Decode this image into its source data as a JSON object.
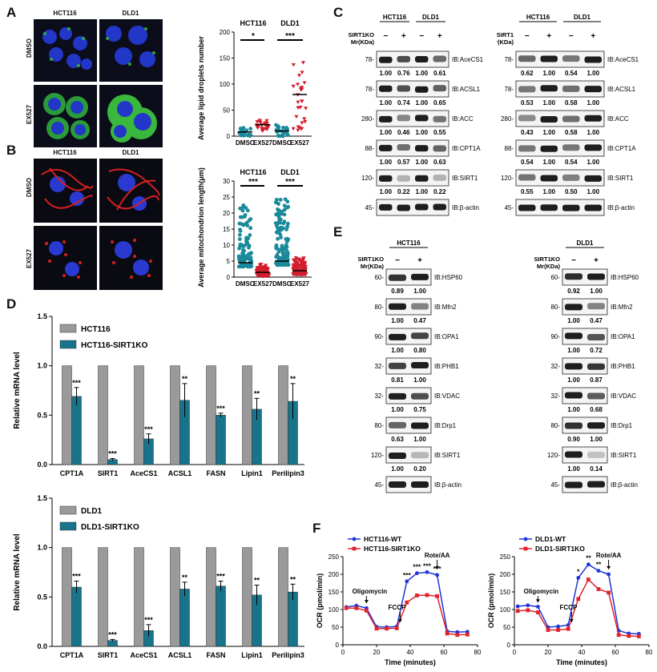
{
  "panels": {
    "A": "A",
    "B": "B",
    "C": "C",
    "D": "D",
    "E": "E",
    "F": "F"
  },
  "panel_a": {
    "col_labels": [
      "HCT116",
      "DLD1"
    ],
    "row_labels": [
      "DMSO",
      "EX527"
    ],
    "plot": {
      "ylabel": "Average lipid droplets number",
      "group_labels": [
        "HCT116",
        "DLD1"
      ],
      "sig": [
        "*",
        "***"
      ],
      "xticks": [
        "DMSO",
        "EX527",
        "DMSO",
        "EX527"
      ],
      "yticks": [
        "0",
        "50",
        "100",
        "150",
        "200"
      ]
    }
  },
  "panel_b": {
    "col_labels": [
      "HCT116",
      "DLD1"
    ],
    "row_labels": [
      "DMSO",
      "EX527"
    ],
    "plot": {
      "ylabel": "Average mitochondrion length(μm)",
      "group_labels": [
        "HCT116",
        "DLD1"
      ],
      "sig": [
        "***",
        "***"
      ],
      "xticks": [
        "DMSO",
        "EX527",
        "DMSO",
        "EX527"
      ],
      "yticks": [
        "0",
        "5",
        "10",
        "15",
        "20",
        "25",
        "30"
      ]
    }
  },
  "chart_data": [
    {
      "type": "scatter",
      "panel": "A",
      "categories": [
        "DMSO",
        "EX527",
        "DMSO",
        "EX527"
      ],
      "groups": [
        "HCT116",
        "DLD1"
      ],
      "ylim": [
        0,
        200
      ],
      "medians": [
        8,
        22,
        10,
        80
      ],
      "colors": [
        "#1a8a9a",
        "#d21e2d",
        "#1a8a9a",
        "#d21e2d"
      ]
    },
    {
      "type": "scatter",
      "panel": "B",
      "categories": [
        "DMSO",
        "EX527",
        "DMSO",
        "EX527"
      ],
      "groups": [
        "HCT116",
        "DLD1"
      ],
      "ylim": [
        0,
        30
      ],
      "medians": [
        4.5,
        1.5,
        5,
        2
      ],
      "colors": [
        "#1a8a9a",
        "#d21e2d",
        "#1a8a9a",
        "#d21e2d"
      ]
    },
    {
      "type": "bar",
      "panel": "D-top",
      "categories": [
        "CPT1A",
        "SIRT1",
        "AceCS1",
        "ACSL1",
        "FASN",
        "Lipin1",
        "Perilipin3"
      ],
      "ylabel": "Relative mRNA level",
      "ylim": [
        0,
        1.5
      ],
      "yticks": [
        "0.0",
        "0.5",
        "1.0",
        "1.5"
      ],
      "series": [
        {
          "name": "HCT116",
          "values": [
            1,
            1,
            1,
            1,
            1,
            1,
            1
          ],
          "color": "#9a9a9a"
        },
        {
          "name": "HCT116-SIRT1KO",
          "values": [
            0.69,
            0.05,
            0.26,
            0.65,
            0.5,
            0.56,
            0.64
          ],
          "errors": [
            0.09,
            0.01,
            0.05,
            0.17,
            0.02,
            0.11,
            0.18
          ],
          "color": "#17748a"
        }
      ],
      "sig": [
        "***",
        "***",
        "***",
        "**",
        "***",
        "**",
        "**"
      ]
    },
    {
      "type": "bar",
      "panel": "D-bottom",
      "categories": [
        "CPT1A",
        "SIRT1",
        "AceCS1",
        "ACSL1",
        "FASN",
        "Lipin1",
        "Perilipin3"
      ],
      "ylabel": "Relative mRNA level",
      "ylim": [
        0,
        1.5
      ],
      "yticks": [
        "0.0",
        "0.5",
        "1.0",
        "1.5"
      ],
      "series": [
        {
          "name": "DLD1",
          "values": [
            1,
            1,
            1,
            1,
            1,
            1,
            1
          ],
          "color": "#9a9a9a"
        },
        {
          "name": "DLD1-SIRT1KO",
          "values": [
            0.6,
            0.06,
            0.16,
            0.58,
            0.61,
            0.52,
            0.55
          ],
          "errors": [
            0.06,
            0.01,
            0.06,
            0.07,
            0.05,
            0.1,
            0.08
          ],
          "color": "#17748a"
        }
      ],
      "sig": [
        "***",
        "***",
        "***",
        "**",
        "***",
        "**",
        "**"
      ]
    },
    {
      "type": "line",
      "panel": "F-left",
      "xlabel": "Time (minutes)",
      "ylabel": "OCR (pmol/min)",
      "xlim": [
        0,
        80
      ],
      "ylim": [
        0,
        250
      ],
      "xticks": [
        "0",
        "20",
        "40",
        "60",
        "80"
      ],
      "yticks": [
        "0",
        "50",
        "100",
        "150",
        "200",
        "250"
      ],
      "x": [
        2,
        8,
        14,
        20,
        26,
        32,
        38,
        44,
        50,
        56,
        62,
        68,
        74
      ],
      "series": [
        {
          "name": "HCT116-WT",
          "values": [
            107,
            111,
            104,
            51,
            50,
            52,
            180,
            203,
            206,
            198,
            38,
            36,
            37
          ],
          "color": "#1f35d6"
        },
        {
          "name": "HCT116-SIRT1KO",
          "values": [
            104,
            104,
            97,
            46,
            46,
            47,
            120,
            140,
            141,
            138,
            32,
            28,
            29
          ],
          "color": "#e0242c"
        }
      ],
      "annotations": [
        "Oligomycin",
        "FCCP",
        "Rote/AA"
      ],
      "sig": [
        "***",
        "***",
        "***",
        "***"
      ]
    },
    {
      "type": "line",
      "panel": "F-right",
      "xlabel": "Time (minutes)",
      "ylabel": "OCR (pmol/min)",
      "xlim": [
        0,
        80
      ],
      "ylim": [
        0,
        250
      ],
      "xticks": [
        "0",
        "20",
        "40",
        "60",
        "80"
      ],
      "yticks": [
        "0",
        "50",
        "100",
        "150",
        "200",
        "250"
      ],
      "x": [
        2,
        8,
        14,
        20,
        26,
        32,
        38,
        44,
        50,
        56,
        62,
        68,
        74
      ],
      "series": [
        {
          "name": "DLD1-WT",
          "values": [
            109,
            112,
            108,
            50,
            52,
            56,
            190,
            228,
            210,
            200,
            40,
            32,
            31
          ],
          "color": "#1f35d6"
        },
        {
          "name": "DLD1-SIRT1KO",
          "values": [
            96,
            98,
            92,
            42,
            42,
            45,
            130,
            185,
            158,
            148,
            28,
            25,
            24
          ],
          "color": "#e0242c"
        }
      ],
      "annotations": [
        "Oligomycin",
        "FCCP",
        "Rote/AA"
      ],
      "sig": [
        "*",
        "**",
        "**"
      ]
    }
  ],
  "panel_c": {
    "left": {
      "cells": [
        "HCT116",
        "DLD1"
      ],
      "condition": "SIRT1KO",
      "mr": "Mr(KDa)",
      "signs": [
        "−",
        "+",
        "−",
        "+"
      ],
      "rows": [
        {
          "mw": "78-",
          "label": "IB:AceCS1",
          "q": [
            "1.00",
            "0.76",
            "1.00",
            "0.61"
          ]
        },
        {
          "mw": "78-",
          "label": "IB:ACSL1",
          "q": [
            "1.00",
            "0.74",
            "1.00",
            "0.65"
          ]
        },
        {
          "mw": "280-",
          "label": "IB:ACC",
          "q": [
            "1.00",
            "0.46",
            "1.00",
            "0.55"
          ]
        },
        {
          "mw": "88-",
          "label": "IB:CPT1A",
          "q": [
            "1.00",
            "0.57",
            "1.00",
            "0.63"
          ]
        },
        {
          "mw": "120-",
          "label": "IB:SIRT1",
          "q": [
            "1.00",
            "0.22",
            "1.00",
            "0.22"
          ]
        },
        {
          "mw": "45-",
          "label": "IB:β-actin",
          "q": []
        }
      ]
    },
    "right": {
      "cells": [
        "HCT116",
        "DLD1"
      ],
      "condition": "OVSIRT1",
      "mr": "Mr(KDa)",
      "signs": [
        "−",
        "+",
        "−",
        "+"
      ],
      "rows": [
        {
          "mw": "78-",
          "label": "IB:AceCS1",
          "q": [
            "0.62",
            "1.00",
            "0.54",
            "1.00"
          ]
        },
        {
          "mw": "78-",
          "label": "IB:ACSL1",
          "q": [
            "0.53",
            "1.00",
            "0.58",
            "1.00"
          ]
        },
        {
          "mw": "280-",
          "label": "IB:ACC",
          "q": [
            "0.43",
            "1.00",
            "0.58",
            "1.00"
          ]
        },
        {
          "mw": "88-",
          "label": "IB:CPT1A",
          "q": [
            "0.54",
            "1.00",
            "0.54",
            "1.00"
          ]
        },
        {
          "mw": "120-",
          "label": "IB:SIRT1",
          "q": [
            "0.55",
            "1.00",
            "0.50",
            "1.00"
          ]
        },
        {
          "mw": "45-",
          "label": "IB:β-actin",
          "q": []
        }
      ]
    }
  },
  "panel_e": {
    "left": {
      "cell": "HCT116",
      "condition": "SIRT1KO",
      "mr": "Mr(KDa)",
      "signs": [
        "−",
        "+"
      ],
      "rows": [
        {
          "mw": "60-",
          "label": "IB:HSP60",
          "q": [
            "0.89",
            "1.00"
          ]
        },
        {
          "mw": "80-",
          "label": "IB:Mfn2",
          "q": [
            "1.00",
            "0.47"
          ]
        },
        {
          "mw": "90-",
          "label": "IB:OPA1",
          "q": [
            "1.00",
            "0.80"
          ]
        },
        {
          "mw": "32-",
          "label": "IB:PHB1",
          "q": [
            "0.81",
            "1.00"
          ]
        },
        {
          "mw": "32-",
          "label": "IB:VDAC",
          "q": [
            "1.00",
            "0.75"
          ]
        },
        {
          "mw": "80-",
          "label": "IB:Drp1",
          "q": [
            "0.63",
            "1.00"
          ]
        },
        {
          "mw": "120-",
          "label": "IB:SIRT1",
          "q": [
            "1.00",
            "0.20"
          ]
        },
        {
          "mw": "45-",
          "label": "IB:β-actin",
          "q": []
        }
      ]
    },
    "right": {
      "cell": "DLD1",
      "condition": "SIRT1KO",
      "mr": "Mr(KDa)",
      "signs": [
        "−",
        "+"
      ],
      "rows": [
        {
          "mw": "60-",
          "label": "IB:HSP60",
          "q": [
            "0.92",
            "1.00"
          ]
        },
        {
          "mw": "80-",
          "label": "IB:Mfn2",
          "q": [
            "1.00",
            "0.47"
          ]
        },
        {
          "mw": "90-",
          "label": "IB:OPA1",
          "q": [
            "1.00",
            "0.72"
          ]
        },
        {
          "mw": "32-",
          "label": "IB:PHB1",
          "q": [
            "1.00",
            "0.87"
          ]
        },
        {
          "mw": "32-",
          "label": "IB:VDAC",
          "q": [
            "1.00",
            "0.68"
          ]
        },
        {
          "mw": "80-",
          "label": "IB:Drp1",
          "q": [
            "0.90",
            "1.00"
          ]
        },
        {
          "mw": "120-",
          "label": "IB:SIRT1",
          "q": [
            "1.00",
            "0.14"
          ]
        },
        {
          "mw": "45-",
          "label": "IB:β-actin",
          "q": []
        }
      ]
    }
  }
}
